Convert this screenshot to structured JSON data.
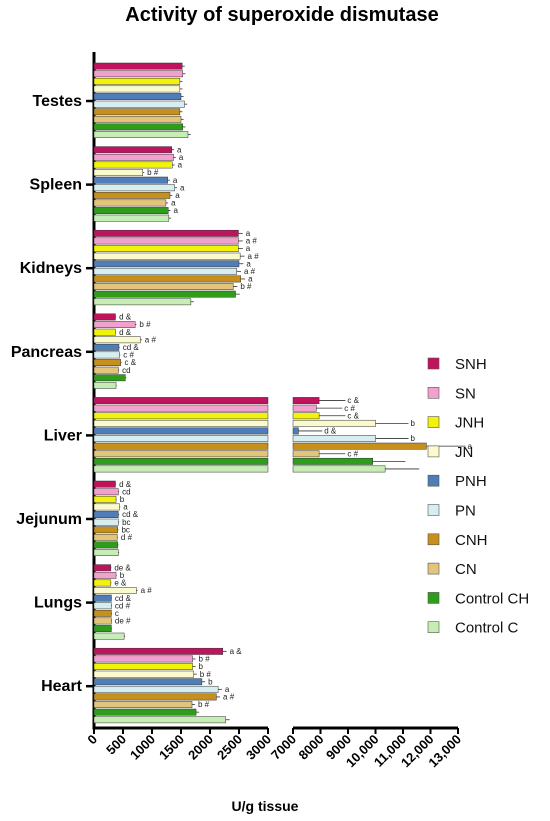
{
  "chart_data": {
    "type": "bar",
    "orientation": "horizontal",
    "title": "Activity of superoxide dismutase",
    "xlabel": "U/g tissue",
    "ylabel": "",
    "xlim_segments": [
      [
        0,
        3000
      ],
      [
        7000,
        13000
      ]
    ],
    "x_ticks": [
      "0",
      "500",
      "1000",
      "1500",
      "2000",
      "2500",
      "3000",
      "7000",
      "8000",
      "9000",
      "10,000",
      "11,000",
      "12,000",
      "13,000"
    ],
    "categories": [
      "Testes",
      "Spleen",
      "Kidneys",
      "Pancreas",
      "Liver",
      "Jejunum",
      "Lungs",
      "Heart"
    ],
    "legend_position": "right",
    "series": [
      {
        "name": "SNH",
        "color": "#C0135E",
        "values": [
          1520,
          1340,
          2490,
          370,
          7950,
          370,
          290,
          2220
        ],
        "labels": [
          "",
          "a",
          "a",
          "d &",
          "c &",
          "d &",
          "de &",
          "a &"
        ]
      },
      {
        "name": "SN",
        "color": "#F2A0CE",
        "values": [
          1530,
          1370,
          2490,
          710,
          7850,
          420,
          380,
          1700
        ],
        "labels": [
          "",
          "a",
          "a #",
          "b #",
          "c #",
          "cd",
          "b",
          "b #"
        ]
      },
      {
        "name": "JNH",
        "color": "#F2F20A",
        "values": [
          1480,
          1350,
          2490,
          370,
          7950,
          380,
          290,
          1700
        ],
        "labels": [
          "",
          "a",
          "a",
          "d &",
          "c &",
          "b",
          "e &",
          "b"
        ]
      },
      {
        "name": "JN",
        "color": "#FAFACC",
        "values": [
          1480,
          840,
          2520,
          800,
          10000,
          440,
          730,
          1720
        ],
        "labels": [
          "",
          "b #",
          "a #",
          "a #",
          "b",
          "a",
          "a #",
          "b #"
        ]
      },
      {
        "name": "PNH",
        "color": "#4E7DB8",
        "values": [
          1500,
          1270,
          2500,
          430,
          7200,
          420,
          300,
          1860
        ],
        "labels": [
          "",
          "a",
          "a",
          "cd &",
          "d &",
          "cd &",
          "cd &",
          "b"
        ]
      },
      {
        "name": "PN",
        "color": "#D6EEF0",
        "values": [
          1560,
          1390,
          2460,
          440,
          10000,
          420,
          300,
          2140
        ],
        "labels": [
          "",
          "a",
          "a #",
          "c #",
          "b",
          "bc",
          "cd #",
          "a"
        ]
      },
      {
        "name": "CNH",
        "color": "#C7901A",
        "values": [
          1480,
          1310,
          2530,
          460,
          11850,
          410,
          300,
          2110
        ],
        "labels": [
          "",
          "a",
          "a",
          "c &",
          "a",
          "bc",
          "c",
          "a #"
        ]
      },
      {
        "name": "CN",
        "color": "#E2C47A",
        "values": [
          1500,
          1240,
          2400,
          420,
          7950,
          400,
          300,
          1690
        ],
        "labels": [
          "",
          "a",
          "b #",
          "cd",
          "c #",
          "d #",
          "de #",
          "b #"
        ]
      },
      {
        "name": "Control CH",
        "color": "#2E9E1A",
        "values": [
          1530,
          1280,
          2440,
          540,
          9900,
          410,
          300,
          1760
        ],
        "labels": [
          "",
          "a",
          "",
          "",
          "",
          "",
          "",
          ""
        ]
      },
      {
        "name": "Control C",
        "color": "#C6EDB4",
        "values": [
          1620,
          1290,
          1670,
          380,
          10350,
          420,
          520,
          2270
        ],
        "labels": [
          "",
          "",
          "",
          "",
          "",
          "",
          "",
          ""
        ]
      }
    ]
  }
}
